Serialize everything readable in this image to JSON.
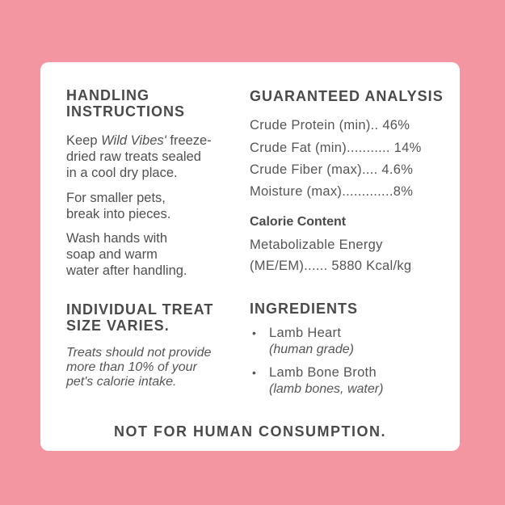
{
  "colors": {
    "background": "#f495a2",
    "card": "#ffffff",
    "text": "#4a4a4a"
  },
  "handling": {
    "title_line1": "HANDLING",
    "title_line2": "INSTRUCTIONS",
    "p1_pre": "Keep ",
    "p1_brand": "Wild Vibes'",
    "p1_post": " freeze-",
    "p1_line2": "dried raw treats sealed",
    "p1_line3": "in a cool dry place.",
    "p2_line1": "For smaller pets,",
    "p2_line2": "break into pieces.",
    "p3_line1": "Wash hands with",
    "p3_line2": "soap and warm",
    "p3_line3": "water after handling."
  },
  "analysis": {
    "title": "GUARANTEED ANALYSIS",
    "rows": [
      {
        "label": "Crude Protein (min)..",
        "value": "46%"
      },
      {
        "label": "Crude Fat (min)...........",
        "value": "14%"
      },
      {
        "label": "Crude Fiber (max)....",
        "value": "4.6%"
      },
      {
        "label": "Moisture (max).............",
        "value": "8%"
      }
    ],
    "calorie_title": "Calorie Content",
    "calorie_line1": "Metabolizable Energy",
    "calorie_label": "(ME/EM)......",
    "calorie_value": "5880 Kcal/kg"
  },
  "treat": {
    "title_line1": "INDIVIDUAL TREAT",
    "title_line2": "SIZE VARIES.",
    "line1": "Treats should not provide",
    "line2": "more than 10% of your",
    "line3": "pet's calorie intake."
  },
  "ingredients": {
    "title": "INGREDIENTS",
    "items": [
      {
        "name": "Lamb Heart",
        "note": "(human grade)"
      },
      {
        "name": "Lamb Bone Broth",
        "note": "(lamb bones, water)"
      }
    ]
  },
  "footer": "NOT FOR HUMAN CONSUMPTION."
}
